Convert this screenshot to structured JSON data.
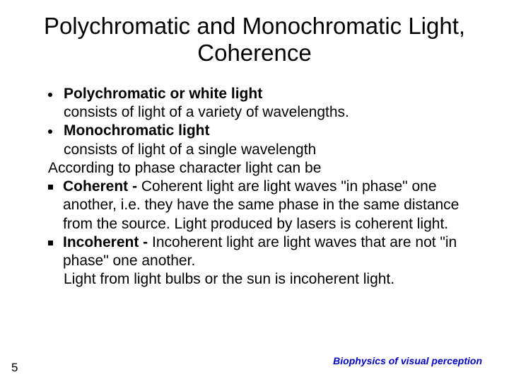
{
  "colors": {
    "background": "#ffffff",
    "text": "#000000",
    "footer": "#0000c0"
  },
  "fonts": {
    "family": "Arial, Helvetica, sans-serif",
    "title_size": 33,
    "body_size": 21,
    "footer_size": 14,
    "pagenum_size": 17
  },
  "title": "Polychromatic and Monochromatic Light, Coherence",
  "bullets": {
    "poly_head": "Polychromatic or white light",
    "poly_body": "consists of light of a variety of wavelengths.",
    "mono_head": "Monochromatic light",
    "mono_body": "consists of light of a single wavelength",
    "phase_intro": "According to phase character light can be",
    "coherent_head": "Coherent  - ",
    "coherent_body": "Coherent light are light waves \"in phase\" one another, i.e. they have the same phase in the same distance from the source. Light produced by lasers is coherent light.",
    "incoherent_head": "Incoherent - ",
    "incoherent_body": "Incoherent light are light waves that are not \"in phase\" one another.",
    "incoherent_extra": "Light from light bulbs or the sun is incoherent light."
  },
  "footer": "Biophysics of visual perception",
  "page_number": "5"
}
